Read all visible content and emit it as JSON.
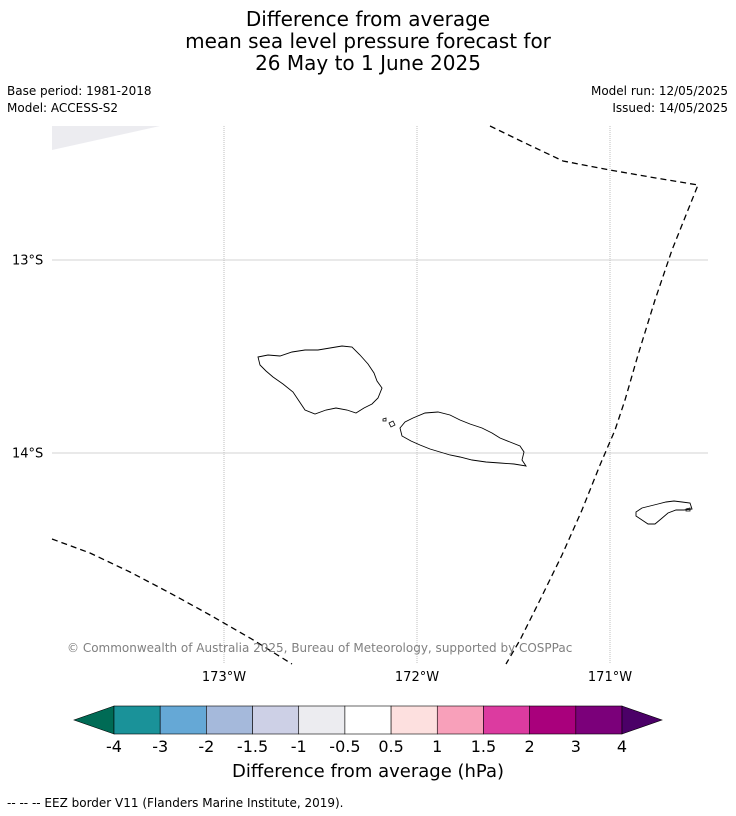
{
  "title": {
    "line1": "Difference from average",
    "line2": "mean sea level pressure forecast for",
    "line3": "26 May to 1 June 2025"
  },
  "meta": {
    "base_period": "Base period: 1981-2018",
    "model": "Model: ACCESS-S2",
    "model_run": "Model run: 12/05/2025",
    "issued": "Issued: 14/05/2025"
  },
  "map": {
    "longitude_labels": [
      "173°W",
      "172°W",
      "171°W"
    ],
    "latitude_labels": [
      "13°S",
      "14°S"
    ],
    "copyright": "© Commonwealth of Australia 2025, Bureau of Meteorology, supported by COSPPac",
    "shaded_anomaly_color": "#ececf0",
    "coastline_color": "#000000",
    "gridline_color": "#b0b0b0",
    "eez_border_style": "dashed"
  },
  "colorbar": {
    "title": "Difference from average (hPa)",
    "ticks": [
      "-4",
      "-3",
      "-2",
      "-1.5",
      "-1",
      "-0.5",
      "0.5",
      "1",
      "1.5",
      "2",
      "3",
      "4"
    ],
    "colors": [
      "#006b55",
      "#1a9299",
      "#65a8d6",
      "#a5b9db",
      "#cdd0e6",
      "#ececf0",
      "#ffffff",
      "#fde0df",
      "#f8a0ba",
      "#dc3ba0",
      "#a9007c",
      "#7b007a",
      "#4b0067"
    ]
  },
  "legend_note": "--  --  -- EEZ border V11 (Flanders Marine Institute, 2019)."
}
